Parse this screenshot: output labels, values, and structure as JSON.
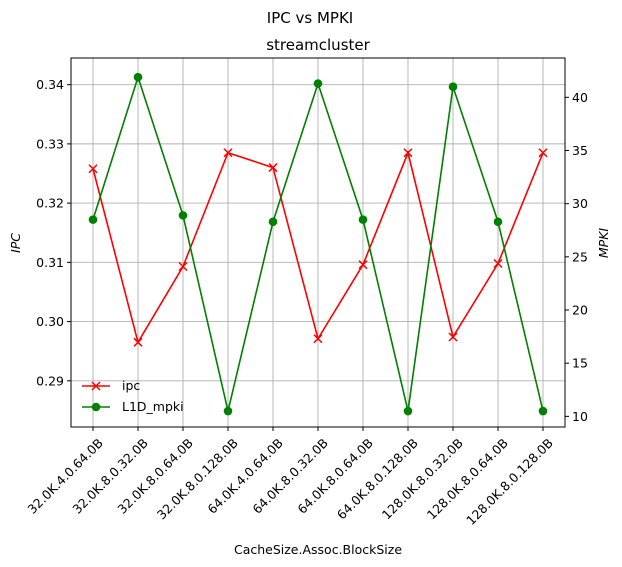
{
  "chart_data": {
    "type": "line",
    "title": "IPC vs MPKI",
    "subtitle": "streamcluster",
    "xlabel": "CacheSize.Assoc.BlockSize",
    "ylabel_left": "IPC",
    "ylabel_right": "MPKI",
    "categories": [
      "32.0K.4.0.64.0B",
      "32.0K.8.0.32.0B",
      "32.0K.8.0.64.0B",
      "32.0K.8.0.128.0B",
      "64.0K.4.0.64.0B",
      "64.0K.8.0.32.0B",
      "64.0K.8.0.64.0B",
      "64.0K.8.0.128.0B",
      "128.0K.8.0.32.0B",
      "128.0K.8.0.64.0B",
      "128.0K.8.0.128.0B"
    ],
    "ylim_left": [
      0.2822,
      0.3445
    ],
    "ylim_right": [
      9.0,
      43.7
    ],
    "yticks_left": [
      "0.29",
      "0.30",
      "0.31",
      "0.32",
      "0.33",
      "0.34"
    ],
    "yticks_right": [
      "10",
      "15",
      "20",
      "25",
      "30",
      "35",
      "40"
    ],
    "grid": true,
    "legend_position": "lower-left",
    "series": [
      {
        "name": "ipc",
        "axis": "left",
        "color": "#ff0000",
        "marker": "x",
        "values": [
          0.3258,
          0.2965,
          0.3093,
          0.3285,
          0.326,
          0.2971,
          0.3096,
          0.3285,
          0.2974,
          0.3098,
          0.3285
        ]
      },
      {
        "name": "L1D_mpki",
        "axis": "right",
        "color": "#008000",
        "marker": "o",
        "values": [
          28.5,
          41.9,
          28.9,
          10.5,
          28.3,
          41.3,
          28.5,
          10.5,
          41.0,
          28.3,
          10.5
        ]
      }
    ]
  }
}
